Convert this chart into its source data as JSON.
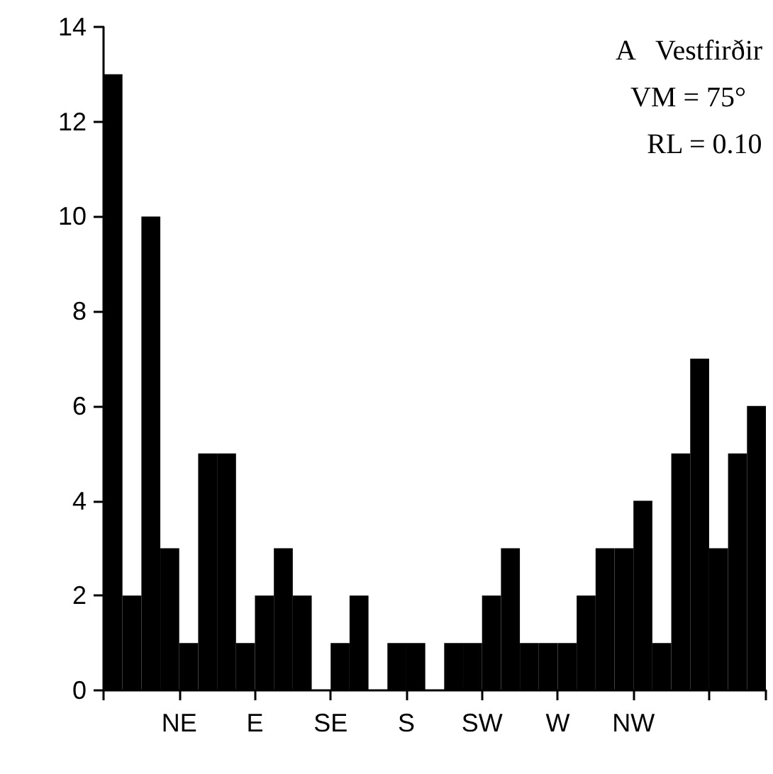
{
  "chart_data": {
    "type": "bar",
    "categories": [
      null,
      null,
      null,
      null,
      "NE",
      null,
      null,
      null,
      "E",
      null,
      null,
      null,
      "SE",
      null,
      null,
      null,
      "S",
      null,
      null,
      null,
      "SW",
      null,
      null,
      null,
      "W",
      null,
      null,
      null,
      "NW",
      null,
      null,
      null,
      null,
      null,
      null
    ],
    "values": [
      13,
      2,
      10,
      3,
      1,
      5,
      5,
      1,
      2,
      3,
      2,
      0,
      1,
      2,
      0,
      1,
      1,
      0,
      1,
      1,
      2,
      3,
      1,
      1,
      1,
      2,
      3,
      3,
      4,
      1,
      5,
      7,
      3,
      5,
      6
    ],
    "color": "#000000",
    "ylim": [
      0,
      14
    ],
    "yticks": [
      0,
      2,
      4,
      6,
      8,
      10,
      12,
      14
    ],
    "annotations": [
      "A   Vestfirðir",
      "VM = 75°",
      "RL = 0.10"
    ]
  }
}
